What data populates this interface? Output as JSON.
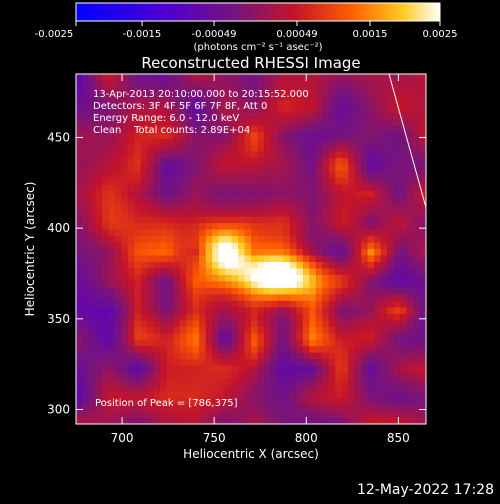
{
  "colorbar": {
    "ticks": [
      "-0.0025",
      "-0.0015",
      "-0.00049",
      "0.00049",
      "0.0015",
      "0.0025"
    ],
    "units": "(photons cm⁻² s⁻¹ asec⁻²)"
  },
  "title": "Reconstructed RHESSI Image",
  "info": {
    "time_range": "13-Apr-2013 20:10:00.000 to 20:15:52.000",
    "detectors": "Detectors: 3F 4F 5F 6F 7F 8F, Att 0",
    "energy": "Energy Range: 6.0 - 12.0 keV",
    "clean": "Clean    Total counts: 2.89E+04",
    "peak": "Position of Peak = [786,375]"
  },
  "footer": {
    "date": "12-May-2022 17:28"
  },
  "colors": {
    "background": "#000000",
    "text": "#ffffff",
    "colormap": "blue-purple-red-yellow-white"
  },
  "chart_data": {
    "type": "heatmap",
    "title": "Reconstructed RHESSI Image",
    "xlabel": "Heliocentric X (arcsec)",
    "ylabel": "Heliocentric Y (arcsec)",
    "xlim": [
      675,
      865
    ],
    "ylim": [
      292,
      485
    ],
    "xticks": [
      700,
      750,
      800,
      850
    ],
    "yticks": [
      300,
      350,
      400,
      450
    ],
    "peak_position": [
      786,
      375
    ],
    "colorbar_range": [
      -0.0025,
      0.0025
    ],
    "sources": [
      {
        "x": 755,
        "y": 388,
        "amplitude": 0.0022
      },
      {
        "x": 786,
        "y": 375,
        "amplitude": 0.0025
      }
    ]
  }
}
